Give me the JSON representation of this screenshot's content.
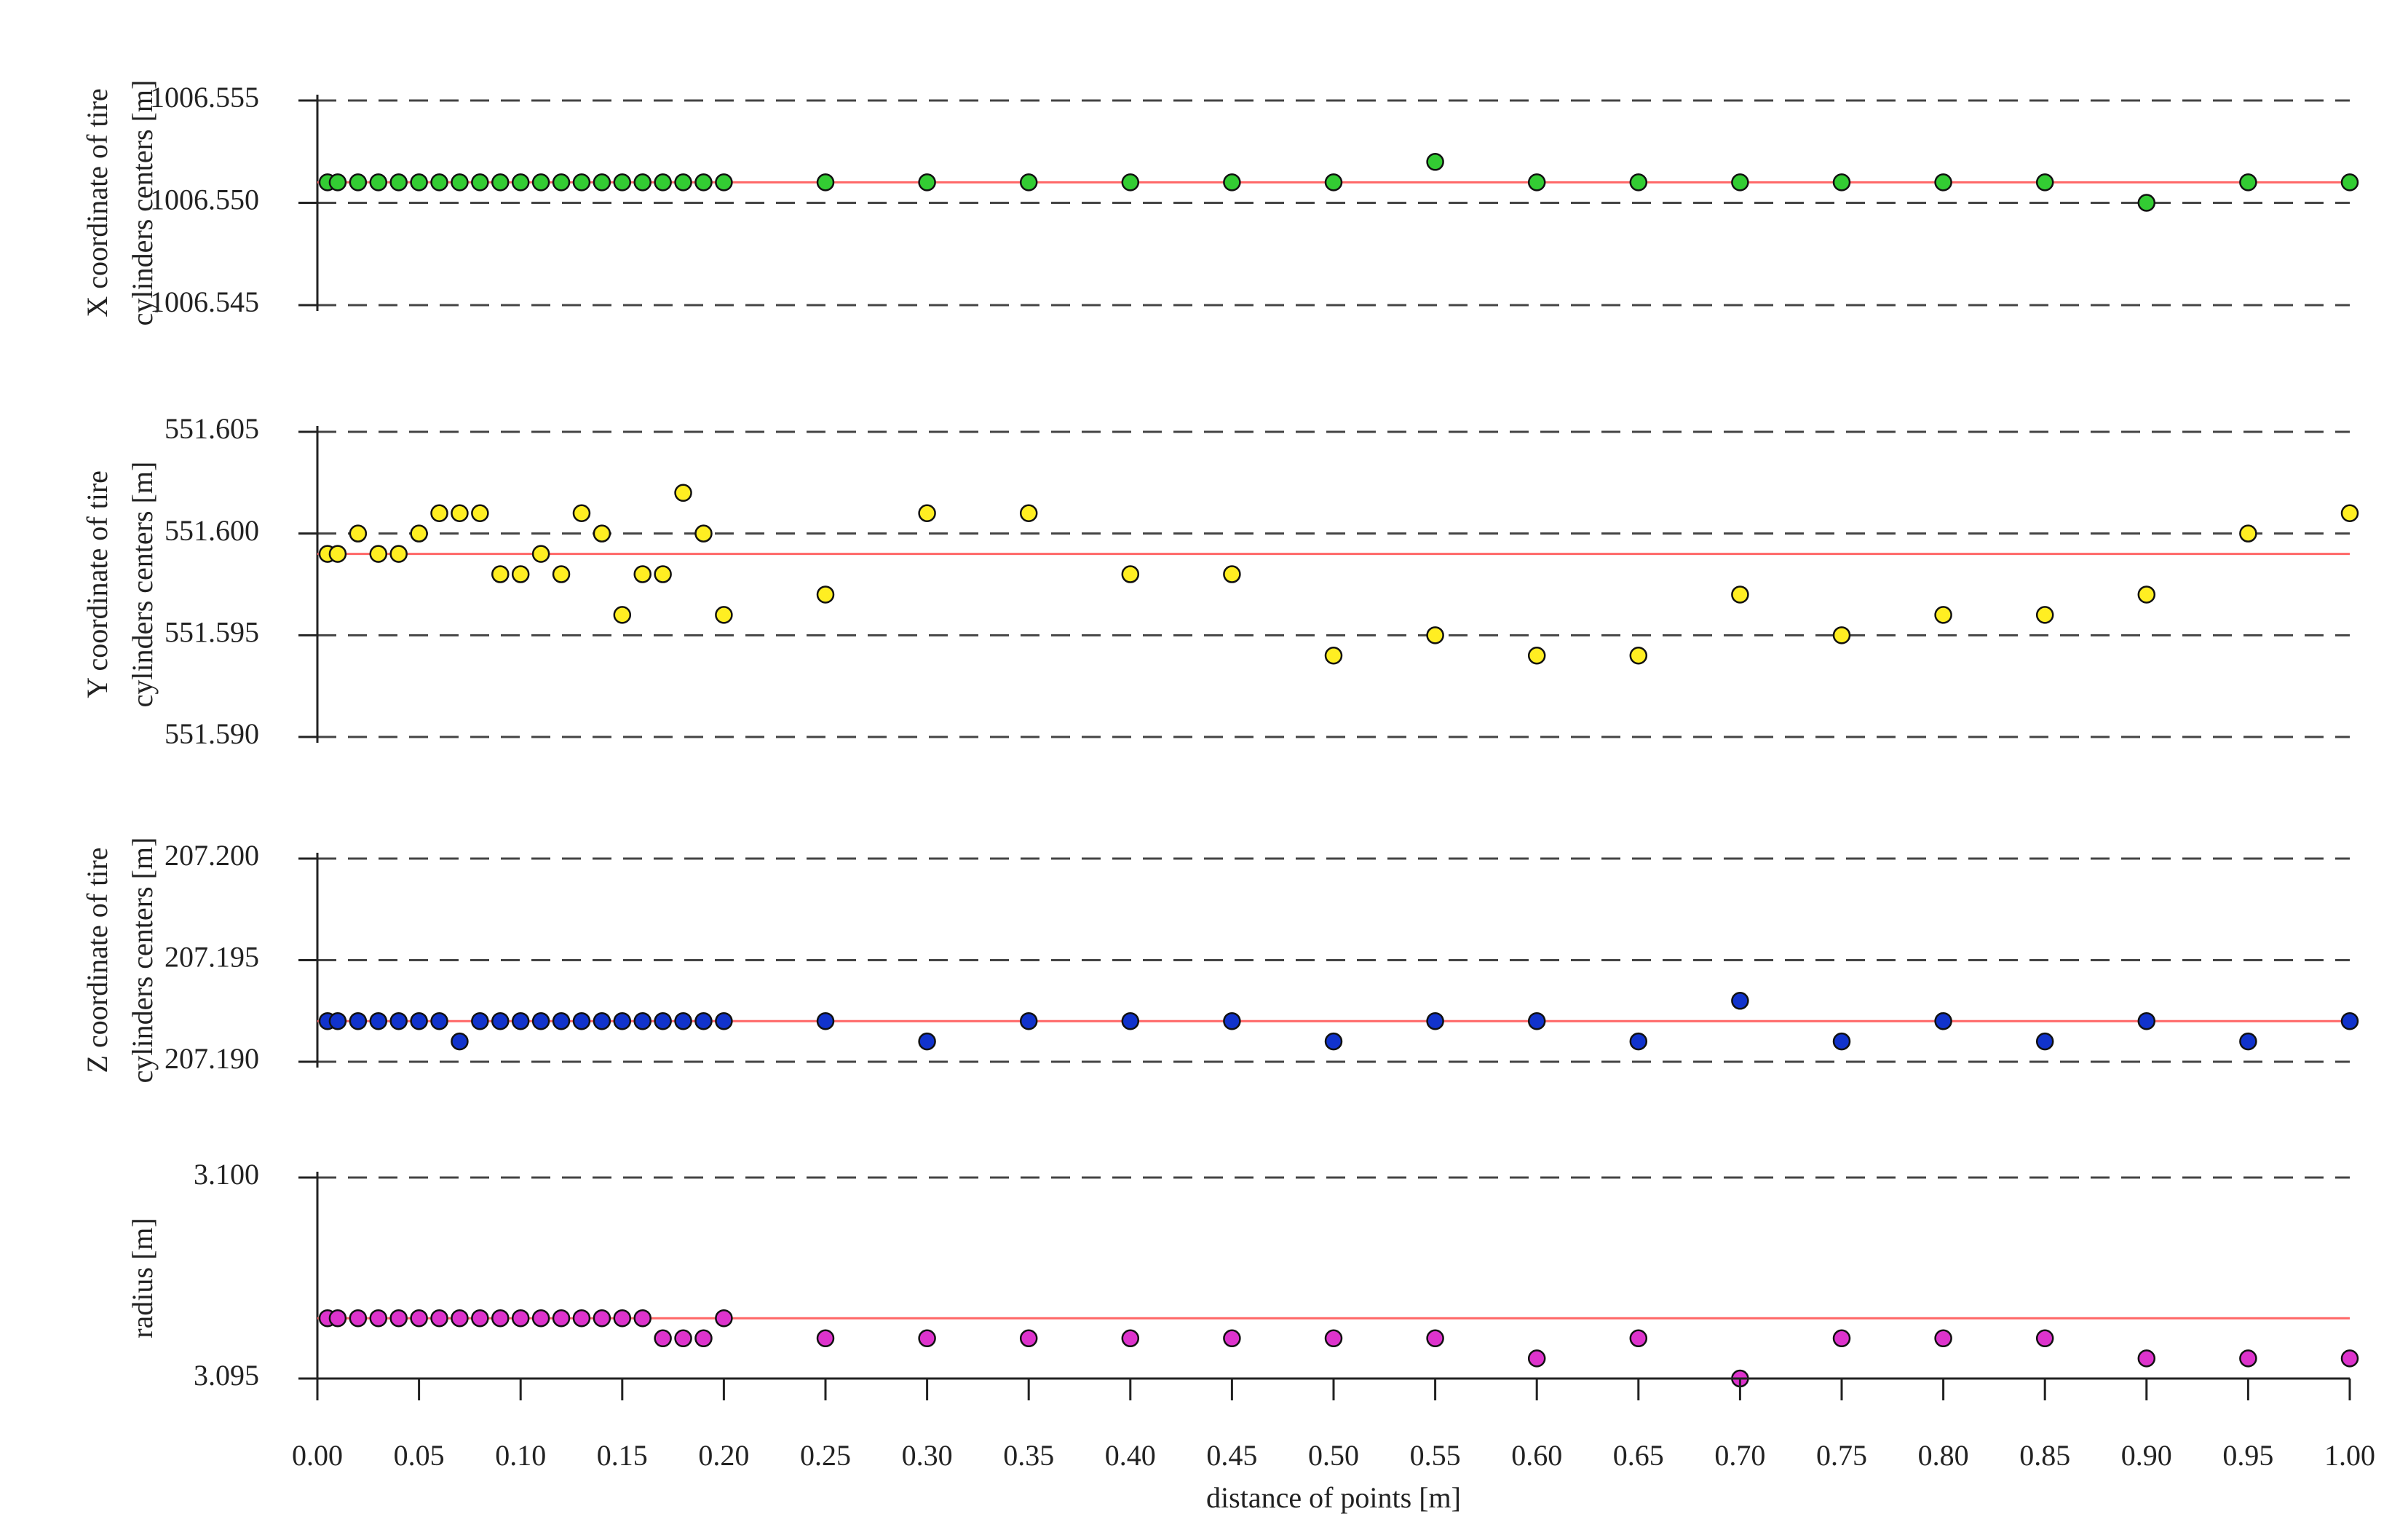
{
  "chart_data": [
    {
      "type": "scatter",
      "ylabel": [
        "X coordinate of tire",
        "cylinders centers [m]"
      ],
      "x": [
        0.005,
        0.01,
        0.02,
        0.03,
        0.04,
        0.05,
        0.06,
        0.07,
        0.08,
        0.09,
        0.1,
        0.11,
        0.12,
        0.13,
        0.14,
        0.15,
        0.16,
        0.17,
        0.18,
        0.19,
        0.2,
        0.25,
        0.3,
        0.35,
        0.4,
        0.45,
        0.5,
        0.55,
        0.6,
        0.65,
        0.7,
        0.75,
        0.8,
        0.85,
        0.9,
        0.95,
        1.0
      ],
      "y": [
        1006.551,
        1006.551,
        1006.551,
        1006.551,
        1006.551,
        1006.551,
        1006.551,
        1006.551,
        1006.551,
        1006.551,
        1006.551,
        1006.551,
        1006.551,
        1006.551,
        1006.551,
        1006.551,
        1006.551,
        1006.551,
        1006.551,
        1006.551,
        1006.551,
        1006.551,
        1006.551,
        1006.551,
        1006.551,
        1006.551,
        1006.551,
        1006.552,
        1006.551,
        1006.551,
        1006.551,
        1006.551,
        1006.551,
        1006.551,
        1006.55,
        1006.551,
        1006.551
      ],
      "color": "#33cc33",
      "reference_line": {
        "value": 1006.551,
        "color": "#ff6666"
      },
      "xlim": [
        0,
        1
      ],
      "ylim": [
        1006.545,
        1006.555
      ],
      "yticks": [
        1006.545,
        {
          "value": 1006.55,
          "label": "1006.550"
        },
        1006.555
      ],
      "grid": true
    },
    {
      "type": "scatter",
      "ylabel": [
        "Y coordinate of tire",
        "cylinders centers [m]"
      ],
      "x": [
        0.005,
        0.01,
        0.02,
        0.03,
        0.04,
        0.05,
        0.06,
        0.07,
        0.08,
        0.09,
        0.1,
        0.11,
        0.12,
        0.13,
        0.14,
        0.15,
        0.16,
        0.17,
        0.18,
        0.19,
        0.2,
        0.25,
        0.3,
        0.35,
        0.4,
        0.45,
        0.5,
        0.55,
        0.6,
        0.65,
        0.7,
        0.75,
        0.8,
        0.85,
        0.9,
        0.95,
        1.0
      ],
      "y": [
        551.599,
        551.599,
        551.6,
        551.599,
        551.599,
        551.6,
        551.601,
        551.601,
        551.601,
        551.598,
        551.598,
        551.599,
        551.598,
        551.601,
        551.6,
        551.596,
        551.598,
        551.598,
        551.602,
        551.6,
        551.596,
        551.597,
        551.601,
        551.601,
        551.598,
        551.598,
        551.594,
        551.595,
        551.594,
        551.594,
        551.597,
        551.595,
        551.596,
        551.596,
        551.597,
        551.6,
        551.601
      ],
      "color": "#ffee22",
      "reference_line": {
        "value": 551.599,
        "color": "#ff6666"
      },
      "xlim": [
        0,
        1
      ],
      "ylim": [
        551.59,
        551.605
      ],
      "yticks": [
        {
          "value": 551.59,
          "label": "551.590"
        },
        551.595,
        {
          "value": 551.6,
          "label": "551.600"
        },
        551.605
      ],
      "grid": true
    },
    {
      "type": "scatter",
      "ylabel": [
        "Z coordinate of tire",
        "cylinders centers [m]"
      ],
      "x": [
        0.005,
        0.01,
        0.02,
        0.03,
        0.04,
        0.05,
        0.06,
        0.07,
        0.08,
        0.09,
        0.1,
        0.11,
        0.12,
        0.13,
        0.14,
        0.15,
        0.16,
        0.17,
        0.18,
        0.19,
        0.2,
        0.25,
        0.3,
        0.35,
        0.4,
        0.45,
        0.5,
        0.55,
        0.6,
        0.65,
        0.7,
        0.75,
        0.8,
        0.85,
        0.9,
        0.95,
        1.0
      ],
      "y": [
        207.192,
        207.192,
        207.192,
        207.192,
        207.192,
        207.192,
        207.192,
        207.191,
        207.192,
        207.192,
        207.192,
        207.192,
        207.192,
        207.192,
        207.192,
        207.192,
        207.192,
        207.192,
        207.192,
        207.192,
        207.192,
        207.192,
        207.191,
        207.192,
        207.192,
        207.192,
        207.191,
        207.192,
        207.192,
        207.191,
        207.193,
        207.191,
        207.192,
        207.191,
        207.192,
        207.191,
        207.192
      ],
      "color": "#1133cc",
      "reference_line": {
        "value": 207.192,
        "color": "#ff6666"
      },
      "xlim": [
        0,
        1
      ],
      "ylim": [
        207.19,
        207.2
      ],
      "yticks": [
        {
          "value": 207.19,
          "label": "207.190"
        },
        207.195,
        {
          "value": 207.2,
          "label": "207.200"
        }
      ],
      "grid": true
    },
    {
      "type": "scatter",
      "ylabel": [
        "radius [m]"
      ],
      "x": [
        0.005,
        0.01,
        0.02,
        0.03,
        0.04,
        0.05,
        0.06,
        0.07,
        0.08,
        0.09,
        0.1,
        0.11,
        0.12,
        0.13,
        0.14,
        0.15,
        0.16,
        0.17,
        0.18,
        0.19,
        0.2,
        0.25,
        0.3,
        0.35,
        0.4,
        0.45,
        0.5,
        0.55,
        0.6,
        0.65,
        0.7,
        0.75,
        0.8,
        0.85,
        0.9,
        0.95,
        1.0
      ],
      "y": [
        3.0965,
        3.0965,
        3.0965,
        3.0965,
        3.0965,
        3.0965,
        3.0965,
        3.0965,
        3.0965,
        3.0965,
        3.0965,
        3.0965,
        3.0965,
        3.0965,
        3.0965,
        3.0965,
        3.0965,
        3.096,
        3.096,
        3.096,
        3.0965,
        3.096,
        3.096,
        3.096,
        3.096,
        3.096,
        3.096,
        3.096,
        3.0955,
        3.096,
        3.095,
        3.096,
        3.096,
        3.096,
        3.0955,
        3.0955,
        3.0955
      ],
      "color": "#dd33cc",
      "reference_line": {
        "value": 3.0965,
        "color": "#ff6666"
      },
      "xlim": [
        0,
        1
      ],
      "ylim": [
        3.095,
        3.1
      ],
      "yticks": [
        3.095,
        {
          "value": 3.1,
          "label": "3.100"
        }
      ],
      "grid": true,
      "xticks": [
        {
          "value": 0,
          "label": "0.00"
        },
        {
          "value": 0.05,
          "label": "0.05"
        },
        {
          "value": 0.1,
          "label": "0.10"
        },
        {
          "value": 0.15,
          "label": "0.15"
        },
        {
          "value": 0.2,
          "label": "0.20"
        },
        {
          "value": 0.25,
          "label": "0.25"
        },
        {
          "value": 0.3,
          "label": "0.30"
        },
        {
          "value": 0.35,
          "label": "0.35"
        },
        {
          "value": 0.4,
          "label": "0.40"
        },
        {
          "value": 0.45,
          "label": "0.45"
        },
        {
          "value": 0.5,
          "label": "0.50"
        },
        {
          "value": 0.55,
          "label": "0.55"
        },
        {
          "value": 0.6,
          "label": "0.60"
        },
        {
          "value": 0.65,
          "label": "0.65"
        },
        {
          "value": 0.7,
          "label": "0.70"
        },
        {
          "value": 0.75,
          "label": "0.75"
        },
        {
          "value": 0.8,
          "label": "0.80"
        },
        {
          "value": 0.85,
          "label": "0.85"
        },
        {
          "value": 0.9,
          "label": "0.90"
        },
        {
          "value": 0.95,
          "label": "0.95"
        },
        {
          "value": 1,
          "label": "1.00"
        }
      ],
      "xlabel": "distance of points [m]"
    }
  ]
}
